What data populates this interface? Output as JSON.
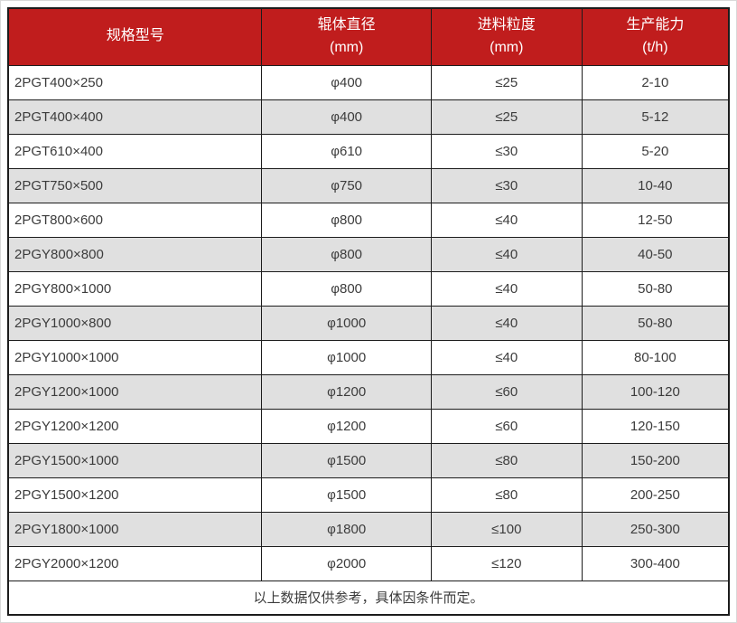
{
  "chart_data": {
    "type": "table",
    "columns": [
      {
        "label": "规格型号",
        "unit": ""
      },
      {
        "label": "辊体直径",
        "unit": "(mm)"
      },
      {
        "label": "进料粒度",
        "unit": "(mm)"
      },
      {
        "label": "生产能力",
        "unit": "(t/h)"
      }
    ],
    "rows": [
      [
        "2PGT400×250",
        "φ400",
        "≤25",
        "2-10"
      ],
      [
        "2PGT400×400",
        "φ400",
        "≤25",
        "5-12"
      ],
      [
        "2PGT610×400",
        "φ610",
        "≤30",
        "5-20"
      ],
      [
        "2PGT750×500",
        "φ750",
        "≤30",
        "10-40"
      ],
      [
        "2PGT800×600",
        "φ800",
        "≤40",
        "12-50"
      ],
      [
        "2PGY800×800",
        "φ800",
        "≤40",
        "40-50"
      ],
      [
        "2PGY800×1000",
        "φ800",
        "≤40",
        "50-80"
      ],
      [
        "2PGY1000×800",
        "φ1000",
        "≤40",
        "50-80"
      ],
      [
        "2PGY1000×1000",
        "φ1000",
        "≤40",
        "80-100"
      ],
      [
        "2PGY1200×1000",
        "φ1200",
        "≤60",
        "100-120"
      ],
      [
        "2PGY1200×1200",
        "φ1200",
        "≤60",
        "120-150"
      ],
      [
        "2PGY1500×1000",
        "φ1500",
        "≤80",
        "150-200"
      ],
      [
        "2PGY1500×1200",
        "φ1500",
        "≤80",
        "200-250"
      ],
      [
        "2PGY1800×1000",
        "φ1800",
        "≤100",
        "250-300"
      ],
      [
        "2PGY2000×1200",
        "φ2000",
        "≤120",
        "300-400"
      ]
    ],
    "footer_note": "以上数据仅供参考，具体因条件而定。"
  },
  "colors": {
    "header_bg": "#c01d1d",
    "header_text": "#ffffff",
    "row_bg": "#ffffff",
    "row_alt_bg": "#e0e0e0",
    "border": "#1c1c1c",
    "body_text": "#3c3c3c"
  }
}
